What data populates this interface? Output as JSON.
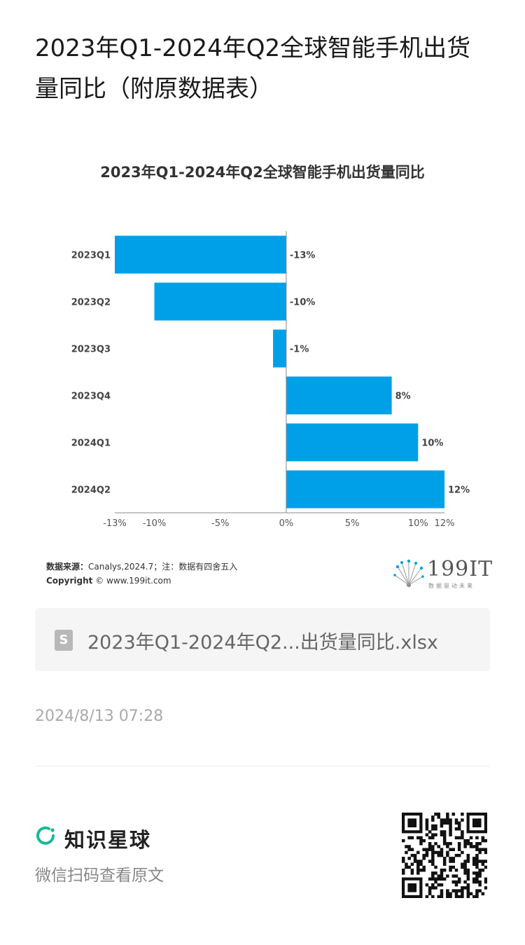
{
  "post": {
    "title": "2023年Q1-2024年Q2全球智能手机出货量同比（附原数据表）",
    "date": "2024/8/13 07:28"
  },
  "chart_data": {
    "type": "bar",
    "orientation": "horizontal",
    "title": "2023年Q1-2024年Q2全球智能手机出货量同比",
    "categories": [
      "2023Q1",
      "2023Q2",
      "2023Q3",
      "2023Q4",
      "2024Q1",
      "2024Q2"
    ],
    "values": [
      -13,
      -10,
      -1,
      8,
      10,
      12
    ],
    "data_labels": [
      "-13%",
      "-10%",
      "-1%",
      "8%",
      "10%",
      "12%"
    ],
    "xlim": [
      -13,
      12
    ],
    "x_ticks": [
      -13,
      -10,
      -5,
      0,
      5,
      10,
      12
    ],
    "x_tick_labels": [
      "-13%",
      "-10%",
      "-5%",
      "0%",
      "5%",
      "10%",
      "12%"
    ],
    "bar_color": "#00a0e9",
    "grid": false,
    "legend": "none"
  },
  "chart_footer": {
    "source_label": "数据来源：",
    "source_text": "Canalys,2024.7；注：数据有四舍五入",
    "copyright_label": "Copyright",
    "copyright_text": "© www.199it.com",
    "logo_text": "199IT",
    "logo_sub": "数据驱动未来"
  },
  "attachment": {
    "icon": "spreadsheet-file-icon",
    "icon_glyph": "S",
    "filename": "2023年Q1-2024年Q2...出货量同比.xlsx"
  },
  "footer": {
    "brand_name": "知识星球",
    "brand_color": "#16b998",
    "hint": "微信扫码查看原文"
  }
}
